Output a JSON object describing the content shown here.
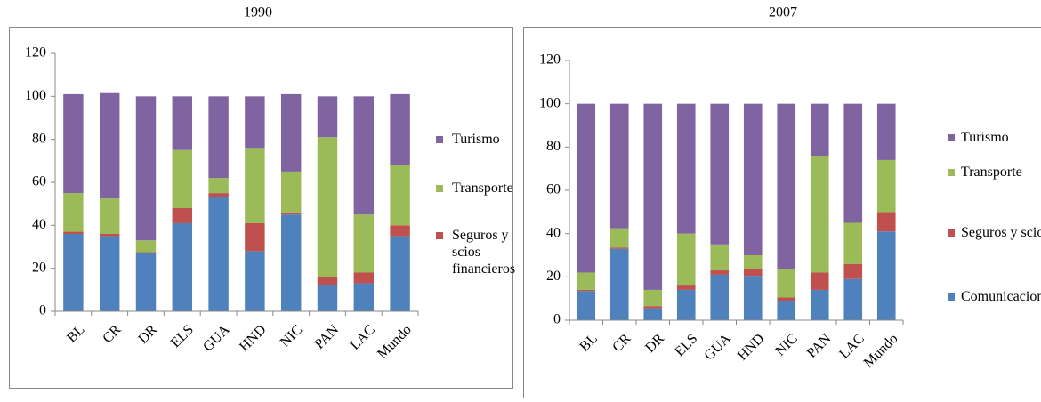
{
  "chart_data": [
    {
      "type": "bar",
      "stacked": true,
      "title": "1990",
      "categories": [
        "BL",
        "CR",
        "DR",
        "ELS",
        "GUA",
        "HND",
        "NIC",
        "PAN",
        "LAC",
        "Mundo"
      ],
      "series": [
        {
          "name": null,
          "color": "#4f81bd",
          "values": [
            36,
            35,
            27,
            41,
            53,
            28,
            45,
            12,
            13,
            35
          ]
        },
        {
          "name": "Seguros y scios financieros",
          "color": "#c0504d",
          "values": [
            1,
            1,
            0.5,
            7,
            2,
            13,
            1,
            4,
            5,
            5
          ]
        },
        {
          "name": "Transporte",
          "color": "#9bbb59",
          "values": [
            18,
            16.5,
            5.5,
            27,
            7,
            35,
            19,
            65,
            27,
            28
          ]
        },
        {
          "name": "Turismo",
          "color": "#8064a2",
          "values": [
            46,
            49,
            67,
            25,
            38,
            24,
            36,
            19,
            55,
            33
          ]
        }
      ],
      "ylim": [
        0,
        120
      ],
      "yticks": [
        0,
        20,
        40,
        60,
        80,
        100,
        120
      ]
    },
    {
      "type": "bar",
      "stacked": true,
      "title": "2007",
      "categories": [
        "BL",
        "CR",
        "DR",
        "ELS",
        "GUA",
        "HND",
        "NIC",
        "PAN",
        "LAC",
        "Mundo"
      ],
      "series": [
        {
          "name": "Comunicaciones",
          "color": "#4f81bd",
          "values": [
            13.5,
            33,
            5.5,
            14,
            21,
            20.5,
            9,
            14,
            19,
            41
          ]
        },
        {
          "name": "Seguros y scios financieros",
          "color": "#c0504d",
          "values": [
            0.5,
            0.5,
            1,
            2,
            2,
            3,
            1.5,
            8,
            7,
            9
          ]
        },
        {
          "name": "Transporte",
          "color": "#9bbb59",
          "values": [
            8,
            9,
            7.5,
            24,
            12,
            6.5,
            13,
            54,
            19,
            24
          ]
        },
        {
          "name": "Turismo",
          "color": "#8064a2",
          "values": [
            78,
            57.5,
            86,
            60,
            65,
            70,
            76.5,
            24,
            55,
            26
          ]
        }
      ],
      "ylim": [
        0,
        120
      ],
      "yticks": [
        0,
        20,
        40,
        60,
        80,
        100,
        120
      ]
    }
  ]
}
